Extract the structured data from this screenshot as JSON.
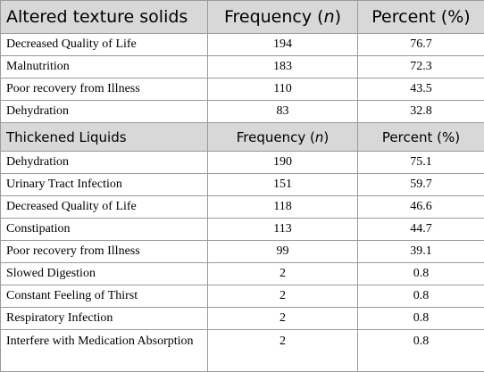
{
  "sections": [
    {
      "header": {
        "label": "Altered texture solids",
        "frequency": "Frequency (",
        "n": "n",
        "frequency_close": ")",
        "percent": "Percent (%)"
      },
      "rows": [
        {
          "label": "Decreased Quality of Life",
          "frequency": "194",
          "percent": "76.7"
        },
        {
          "label": "Malnutrition",
          "frequency": "183",
          "percent": "72.3"
        },
        {
          "label": "Poor recovery from Illness",
          "frequency": "110",
          "percent": "43.5"
        },
        {
          "label": "Dehydration",
          "frequency": "83",
          "percent": "32.8"
        }
      ]
    },
    {
      "header": {
        "label": "Thickened Liquids",
        "frequency": "Frequency (",
        "n": "n",
        "frequency_close": ")",
        "percent": "Percent (%)"
      },
      "rows": [
        {
          "label": "Dehydration",
          "frequency": "190",
          "percent": "75.1"
        },
        {
          "label": "Urinary Tract Infection",
          "frequency": "151",
          "percent": "59.7"
        },
        {
          "label": "Decreased Quality of Life",
          "frequency": "118",
          "percent": "46.6"
        },
        {
          "label": "Constipation",
          "frequency": "113",
          "percent": "44.7"
        },
        {
          "label": "Poor recovery from Illness",
          "frequency": "99",
          "percent": "39.1"
        },
        {
          "label": "Slowed Digestion",
          "frequency": "2",
          "percent": "0.8"
        },
        {
          "label": "Constant Feeling of Thirst",
          "frequency": "2",
          "percent": "0.8"
        },
        {
          "label": "Respiratory Infection",
          "frequency": "2",
          "percent": "0.8"
        },
        {
          "label": "Interfere with Medication Absorption",
          "frequency": "2",
          "percent": "0.8"
        }
      ]
    }
  ]
}
